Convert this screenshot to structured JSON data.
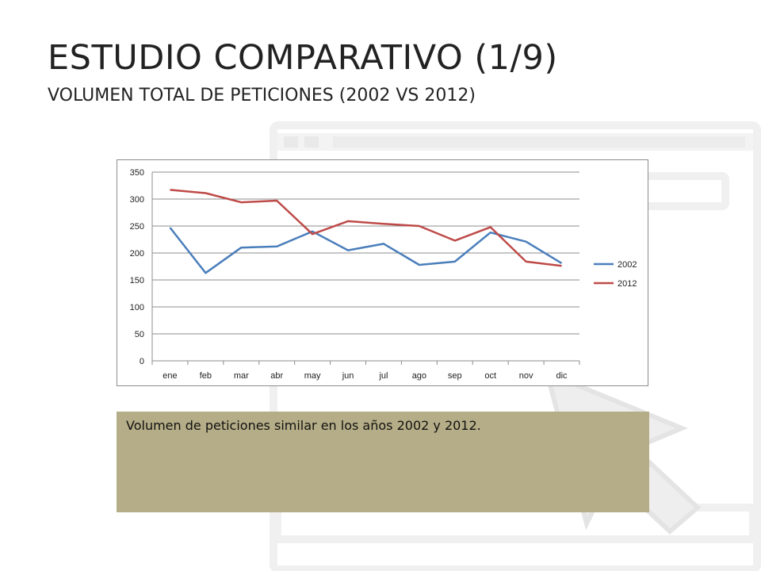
{
  "slide": {
    "title": "ESTUDIO COMPARATIVO (1/9)",
    "subtitle": "VOLUMEN TOTAL DE PETICIONES (2002 VS 2012)",
    "note": "Volumen de peticiones similar en los años 2002 y 2012."
  },
  "chart_data": {
    "type": "line",
    "title": "",
    "xlabel": "",
    "ylabel": "",
    "categories": [
      "ene",
      "feb",
      "mar",
      "abr",
      "may",
      "jun",
      "jul",
      "ago",
      "sep",
      "oct",
      "nov",
      "dic"
    ],
    "yticks": [
      0,
      50,
      100,
      150,
      200,
      250,
      300,
      350
    ],
    "ylim": [
      0,
      350
    ],
    "grid": true,
    "legend_position": "right",
    "series": [
      {
        "name": "2002",
        "color": "#4a7ebb",
        "values": [
          247,
          163,
          210,
          212,
          240,
          205,
          217,
          178,
          184,
          238,
          221,
          181
        ]
      },
      {
        "name": "2012",
        "color": "#be4b48",
        "values": [
          317,
          311,
          294,
          297,
          235,
          259,
          254,
          250,
          223,
          248,
          184,
          176
        ]
      }
    ]
  },
  "colors": {
    "note_background": "#b5ad87",
    "gridline": "#8c8c8c"
  }
}
